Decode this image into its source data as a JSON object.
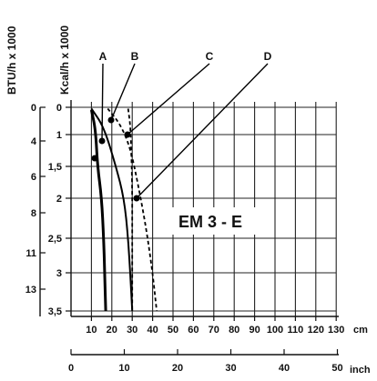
{
  "chart_data": {
    "type": "line",
    "title": "",
    "model_label": "EM 3 - E",
    "x_axis_cm": {
      "label": "cm",
      "ticks": [
        10,
        20,
        30,
        40,
        50,
        60,
        70,
        80,
        90,
        100,
        110,
        120,
        130
      ],
      "range": [
        0,
        130
      ]
    },
    "x_axis_inch": {
      "label": "inch",
      "ticks": [
        0,
        10,
        20,
        30,
        40,
        50
      ],
      "range": [
        0,
        50
      ]
    },
    "y_axis_kcal": {
      "label": "Kcal/h x 1000",
      "ticks": [
        "0",
        "1",
        "1,5",
        "2",
        "2,5",
        "3",
        "3,5"
      ],
      "range": [
        0,
        3.5
      ]
    },
    "y_axis_btu": {
      "label": "BTU/h x 1000",
      "ticks": [
        "0",
        "4",
        "6",
        "8",
        "11",
        "13"
      ]
    },
    "series": [
      {
        "name": "A",
        "line": "solid-thick",
        "x": [
          10,
          12,
          13,
          15,
          16,
          16.5,
          17
        ],
        "y": [
          0.1,
          0.8,
          1.5,
          2.0,
          2.5,
          3.0,
          3.5
        ]
      },
      {
        "name": "B",
        "line": "solid",
        "x": [
          10,
          16,
          22,
          26,
          28,
          29,
          30
        ],
        "y": [
          0.05,
          0.7,
          1.5,
          2.0,
          2.5,
          3.0,
          3.5
        ]
      },
      {
        "name": "C",
        "line": "dashed",
        "x": [
          28,
          29,
          29.5,
          30,
          30,
          30,
          30
        ],
        "y": [
          0.05,
          0.6,
          1.2,
          1.8,
          2.4,
          3.0,
          3.5
        ]
      },
      {
        "name": "D",
        "line": "dashed",
        "x": [
          18,
          24,
          29,
          33,
          37,
          40,
          42
        ],
        "y": [
          0.05,
          0.6,
          1.2,
          1.8,
          2.4,
          3.0,
          3.5
        ]
      }
    ],
    "grid": true
  }
}
